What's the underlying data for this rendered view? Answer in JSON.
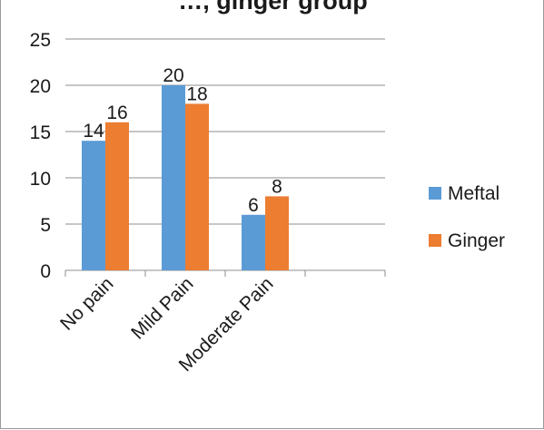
{
  "chart_data": {
    "type": "bar",
    "title": "…, ginger group",
    "categories": [
      "No pain",
      "Mild Pain",
      "Moderate Pain",
      ""
    ],
    "series": [
      {
        "name": "Meftal",
        "values": [
          14,
          20,
          6,
          null
        ],
        "color": "#5b9bd5"
      },
      {
        "name": "Ginger",
        "values": [
          16,
          18,
          8,
          null
        ],
        "color": "#ed7d31"
      }
    ],
    "ylim": [
      0,
      25
    ],
    "yticks": [
      0,
      5,
      10,
      15,
      20,
      25
    ],
    "grid": true,
    "legend_position": "right"
  }
}
